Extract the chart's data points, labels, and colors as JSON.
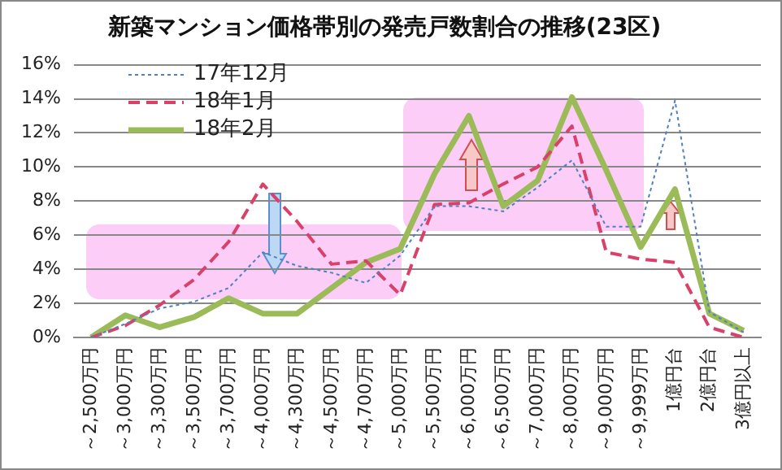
{
  "chart_data": {
    "type": "line",
    "title": "新築マンション価格帯別の発売戸数割合の推移(23区)",
    "categories": [
      "～2,500万円",
      "～3,000万円",
      "～3,300万円",
      "～3,500万円",
      "～3,700万円",
      "～4,000万円",
      "～4,300万円",
      "～4,500万円",
      "～4,700万円",
      "～5,000万円",
      "～5,500万円",
      "～6,000万円",
      "～6,500万円",
      "～7,000万円",
      "～8,000万円",
      "～9,000万円",
      "～9,999万円",
      "1億円台",
      "2億円台",
      "3億円以上"
    ],
    "series": [
      {
        "name": "17年12月",
        "color": "#4f81bd",
        "line_style": "dotted",
        "values": [
          0,
          0.8,
          1.7,
          2.1,
          2.9,
          5.0,
          4.2,
          3.8,
          3.2,
          4.8,
          7.7,
          7.7,
          7.4,
          8.8,
          10.4,
          6.5,
          6.5,
          13.9,
          1.5,
          0.3
        ]
      },
      {
        "name": "18年1月",
        "color": "#d9416a",
        "line_style": "dashed",
        "values": [
          0,
          0.7,
          1.9,
          3.4,
          5.6,
          9.0,
          6.8,
          4.3,
          4.5,
          2.5,
          7.8,
          7.9,
          9.0,
          10.0,
          12.4,
          5.0,
          4.6,
          4.4,
          0.6,
          0
        ]
      },
      {
        "name": "18年2月",
        "color": "#9bbb59",
        "line_style": "solid",
        "values": [
          0,
          1.3,
          0.6,
          1.2,
          2.3,
          1.4,
          1.4,
          2.9,
          4.4,
          5.2,
          9.6,
          13.0,
          7.7,
          9.2,
          14.1,
          9.8,
          5.3,
          8.7,
          1.4,
          0.4
        ]
      }
    ],
    "ylim": [
      0,
      16
    ],
    "yticks": [
      {
        "value": 0,
        "label": "0%"
      },
      {
        "value": 2,
        "label": "2%"
      },
      {
        "value": 4,
        "label": "4%"
      },
      {
        "value": 6,
        "label": "6%"
      },
      {
        "value": 8,
        "label": "8%"
      },
      {
        "value": 10,
        "label": "10%"
      },
      {
        "value": 12,
        "label": "12%"
      },
      {
        "value": 14,
        "label": "14%"
      },
      {
        "value": 16,
        "label": "16%"
      }
    ],
    "grid": "y",
    "legend": "top left",
    "marker": "none"
  }
}
